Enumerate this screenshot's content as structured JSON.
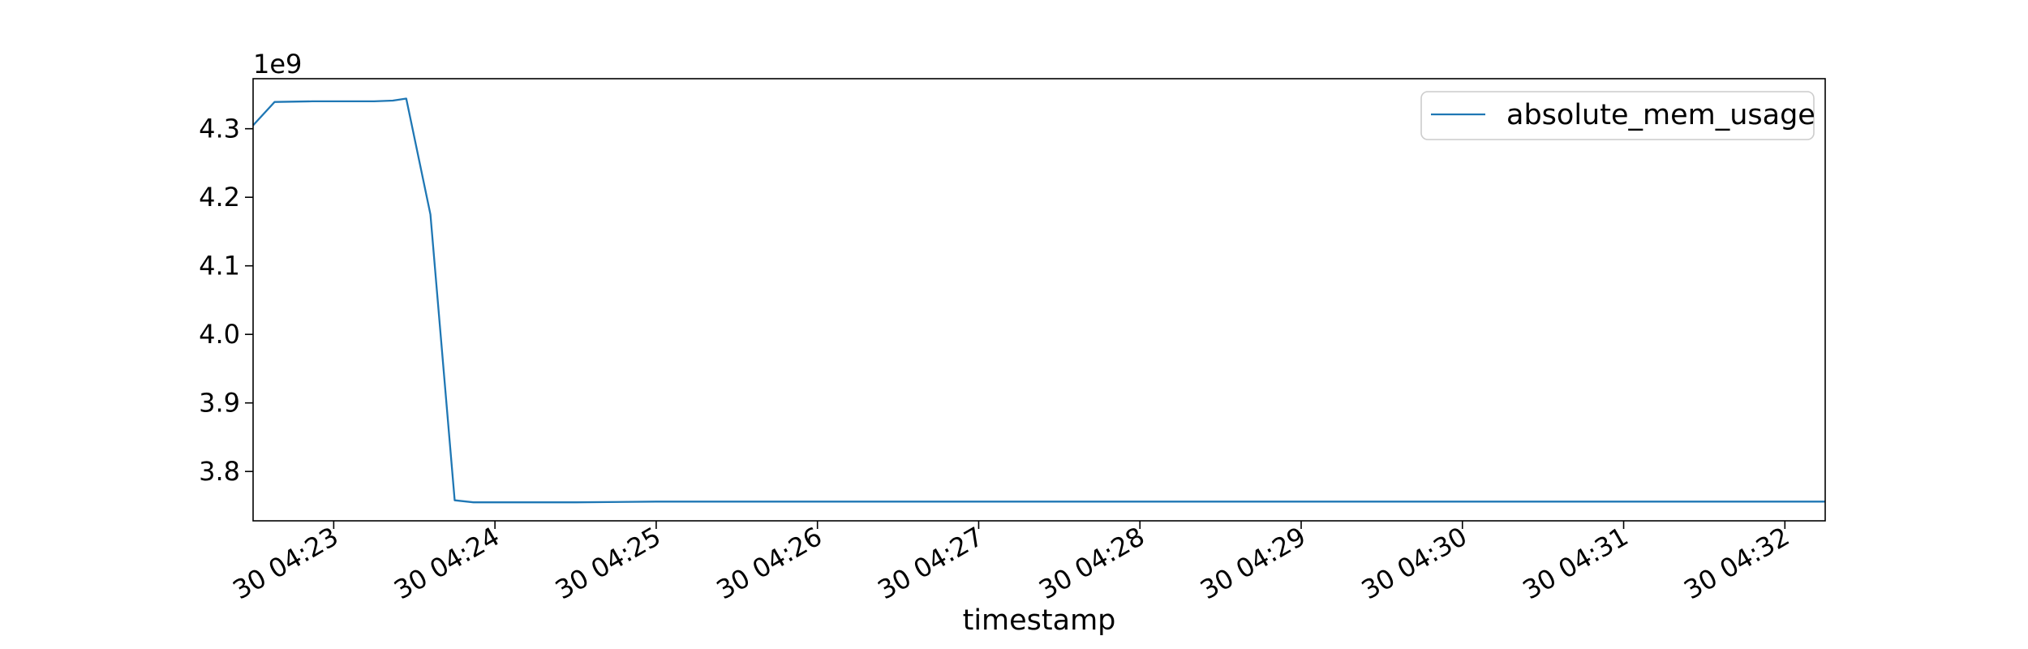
{
  "chart_data": {
    "type": "line",
    "xlabel": "timestamp",
    "ylabel": "",
    "offset_label": "1e9",
    "series_color": "#1f77b4",
    "x_tick_labels": [
      "30 04:23",
      "30 04:24",
      "30 04:25",
      "30 04:26",
      "30 04:27",
      "30 04:28",
      "30 04:29",
      "30 04:30",
      "30 04:31",
      "30 04:32"
    ],
    "y_tick_labels": [
      "4.3",
      "4.2",
      "4.1",
      "4.0",
      "3.9",
      "3.8"
    ],
    "y_ticks": [
      4.3,
      4.2,
      4.1,
      4.0,
      3.9,
      3.8
    ],
    "ylim": [
      3.728,
      4.373
    ],
    "xlim": [
      "30 04:22:30",
      "30 04:32:15"
    ],
    "grid": false,
    "legend_position": "upper right",
    "series": [
      {
        "name": "absolute_mem_usage",
        "x": [
          "30 04:22:30",
          "30 04:22:38",
          "30 04:22:52",
          "30 04:23:08",
          "30 04:23:15",
          "30 04:23:22",
          "30 04:23:27",
          "30 04:23:36",
          "30 04:23:45",
          "30 04:23:52",
          "30 04:24:30",
          "30 04:25:00",
          "30 04:26:00",
          "30 04:27:00",
          "30 04:28:00",
          "30 04:29:00",
          "30 04:30:00",
          "30 04:31:00",
          "30 04:32:00",
          "30 04:32:15"
        ],
        "values": [
          4.305,
          4.339,
          4.34,
          4.34,
          4.34,
          4.341,
          4.344,
          4.175,
          3.758,
          3.755,
          3.755,
          3.756,
          3.756,
          3.756,
          3.756,
          3.756,
          3.756,
          3.756,
          3.756,
          3.756
        ]
      }
    ]
  }
}
